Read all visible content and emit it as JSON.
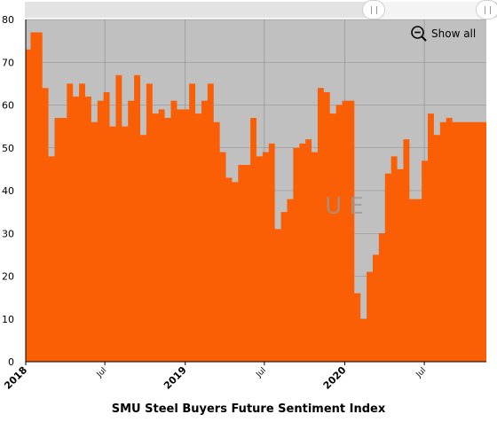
{
  "chart_data": {
    "type": "area",
    "step": true,
    "title": "",
    "xlabel": "SMU Steel Buyers Future Sentiment Index",
    "ylabel": "",
    "ylim": [
      0,
      80
    ],
    "yticks": [
      0,
      10,
      20,
      30,
      40,
      50,
      60,
      70,
      80
    ],
    "xlim": [
      "2018-01-01",
      "2020-11-20"
    ],
    "xticks": [
      {
        "label": "2018",
        "date": "2018-01-01",
        "major": true
      },
      {
        "label": "Jul",
        "date": "2018-07-01",
        "major": false
      },
      {
        "label": "2019",
        "date": "2019-01-01",
        "major": true
      },
      {
        "label": "Jul",
        "date": "2019-07-01",
        "major": false
      },
      {
        "label": "2020",
        "date": "2020-01-01",
        "major": true
      },
      {
        "label": "Jul",
        "date": "2020-07-01",
        "major": false
      }
    ],
    "grid": true,
    "background": "#c0c0c0",
    "series": [
      {
        "color": "#fa5f05",
        "points": [
          [
            "2018-01-01",
            73
          ],
          [
            "2018-01-12",
            77
          ],
          [
            "2018-02-08",
            64
          ],
          [
            "2018-02-22",
            48
          ],
          [
            "2018-03-08",
            57
          ],
          [
            "2018-04-05",
            65
          ],
          [
            "2018-04-19",
            62
          ],
          [
            "2018-05-03",
            65
          ],
          [
            "2018-05-17",
            62
          ],
          [
            "2018-05-31",
            56
          ],
          [
            "2018-06-14",
            61
          ],
          [
            "2018-06-28",
            63
          ],
          [
            "2018-07-12",
            55
          ],
          [
            "2018-07-26",
            67
          ],
          [
            "2018-08-09",
            55
          ],
          [
            "2018-08-23",
            61
          ],
          [
            "2018-09-06",
            67
          ],
          [
            "2018-09-20",
            53
          ],
          [
            "2018-10-04",
            65
          ],
          [
            "2018-10-18",
            58
          ],
          [
            "2018-11-01",
            59
          ],
          [
            "2018-11-15",
            57
          ],
          [
            "2018-11-29",
            61
          ],
          [
            "2018-12-13",
            59
          ],
          [
            "2019-01-10",
            65
          ],
          [
            "2019-01-24",
            58
          ],
          [
            "2019-02-07",
            61
          ],
          [
            "2019-02-21",
            65
          ],
          [
            "2019-03-07",
            56
          ],
          [
            "2019-03-21",
            49
          ],
          [
            "2019-04-04",
            43
          ],
          [
            "2019-04-18",
            42
          ],
          [
            "2019-05-02",
            46
          ],
          [
            "2019-05-30",
            57
          ],
          [
            "2019-06-13",
            48
          ],
          [
            "2019-06-27",
            49
          ],
          [
            "2019-07-11",
            51
          ],
          [
            "2019-07-25",
            31
          ],
          [
            "2019-08-08",
            35
          ],
          [
            "2019-08-22",
            38
          ],
          [
            "2019-09-05",
            50
          ],
          [
            "2019-09-19",
            51
          ],
          [
            "2019-10-03",
            52
          ],
          [
            "2019-10-17",
            49
          ],
          [
            "2019-10-31",
            64
          ],
          [
            "2019-11-14",
            63
          ],
          [
            "2019-11-28",
            58
          ],
          [
            "2019-12-12",
            60
          ],
          [
            "2019-12-26",
            61
          ],
          [
            "2020-01-23",
            16
          ],
          [
            "2020-02-06",
            10
          ],
          [
            "2020-02-20",
            21
          ],
          [
            "2020-03-05",
            25
          ],
          [
            "2020-03-19",
            30
          ],
          [
            "2020-04-02",
            44
          ],
          [
            "2020-04-16",
            48
          ],
          [
            "2020-04-30",
            45
          ],
          [
            "2020-05-14",
            52
          ],
          [
            "2020-05-28",
            38
          ],
          [
            "2020-06-25",
            47
          ],
          [
            "2020-07-09",
            58
          ],
          [
            "2020-07-23",
            53
          ],
          [
            "2020-08-06",
            56
          ],
          [
            "2020-08-20",
            57
          ],
          [
            "2020-09-03",
            56
          ],
          [
            "2020-09-17",
            56
          ]
        ]
      }
    ]
  },
  "controls": {
    "show_all": "Show all"
  },
  "watermark": {
    "text": "U   E",
    "color": "#9a9a9a"
  }
}
